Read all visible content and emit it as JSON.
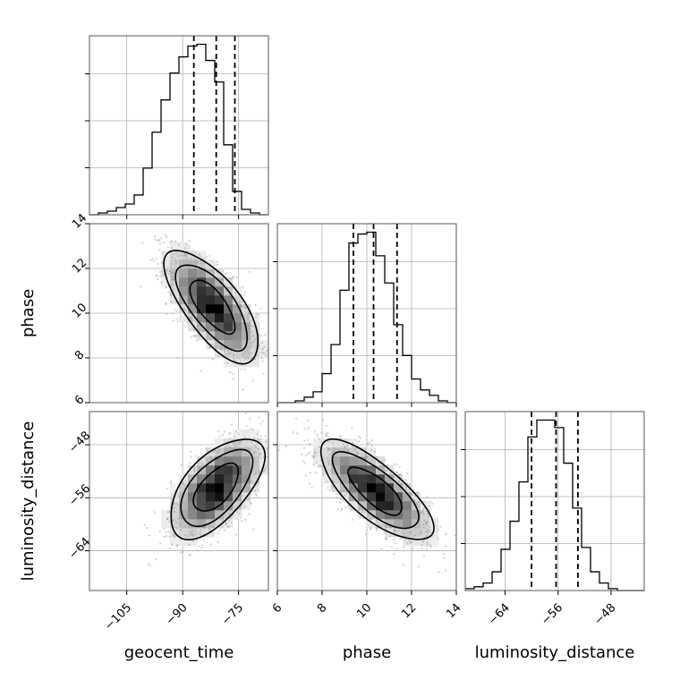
{
  "chart_data": {
    "type": "corner",
    "parameters": [
      {
        "name": "geocent_time",
        "xlabel": "geocent_time",
        "range": [
          -115,
          -67
        ],
        "ticks": [
          -105,
          -90,
          -75
        ],
        "tick_labels": [
          "−105",
          "−90",
          "−75"
        ],
        "quantiles": [
          -87,
          -81,
          -76
        ],
        "hist_edges_start": -115,
        "hist_bin_width": 2.4,
        "hist_counts": [
          0,
          1,
          2,
          4,
          6,
          11,
          26,
          46,
          64,
          79,
          88,
          94,
          95,
          86,
          74,
          39,
          13,
          3,
          1,
          0
        ]
      },
      {
        "name": "phase",
        "xlabel": "phase",
        "ylabel": "phase",
        "range": [
          6,
          14
        ],
        "ticks": [
          6,
          8,
          10,
          12,
          14
        ],
        "tick_labels": [
          "6",
          "8",
          "10",
          "12",
          "14"
        ],
        "quantiles": [
          9.4,
          10.3,
          11.35
        ],
        "hist_edges_start": 6.0,
        "hist_bin_width": 0.4,
        "hist_counts": [
          0,
          0,
          1,
          3,
          6,
          16,
          32,
          62,
          88,
          93,
          94,
          81,
          66,
          43,
          26,
          13,
          7,
          4,
          1,
          0
        ]
      },
      {
        "name": "luminosity_distance",
        "xlabel": "luminosity_distance",
        "ylabel": "luminosity_distance",
        "range": [
          -70,
          -43
        ],
        "ticks": [
          -64,
          -56,
          -48
        ],
        "tick_labels": [
          "−64",
          "−56",
          "−48"
        ],
        "quantiles": [
          -60.0,
          -56.3,
          -53.0
        ],
        "hist_edges_start": -70,
        "hist_bin_width": 1.35,
        "hist_counts": [
          1,
          2,
          4,
          10,
          22,
          37,
          58,
          82,
          91,
          91,
          87,
          68,
          44,
          23,
          10,
          4,
          1,
          0,
          0,
          0
        ]
      }
    ],
    "pairs": [
      {
        "x": "geocent_time",
        "y": "phase",
        "center": [
          -82,
          10.3
        ],
        "sigma": [
          6.0,
          1.2
        ],
        "rho": -0.7,
        "levels": [
          1.0,
          1.6,
          2.1
        ]
      },
      {
        "x": "geocent_time",
        "y": "luminosity_distance",
        "center": [
          -81,
          -54.5
        ],
        "sigma": [
          6.0,
          3.6
        ],
        "rho": 0.6,
        "levels": [
          1.0,
          1.6,
          2.1
        ]
      },
      {
        "x": "phase",
        "y": "luminosity_distance",
        "center": [
          10.4,
          -55.0
        ],
        "sigma": [
          1.2,
          3.6
        ],
        "rho": -0.75,
        "levels": [
          1.0,
          1.6,
          2.1
        ]
      }
    ],
    "grid": true,
    "legend": "none"
  }
}
